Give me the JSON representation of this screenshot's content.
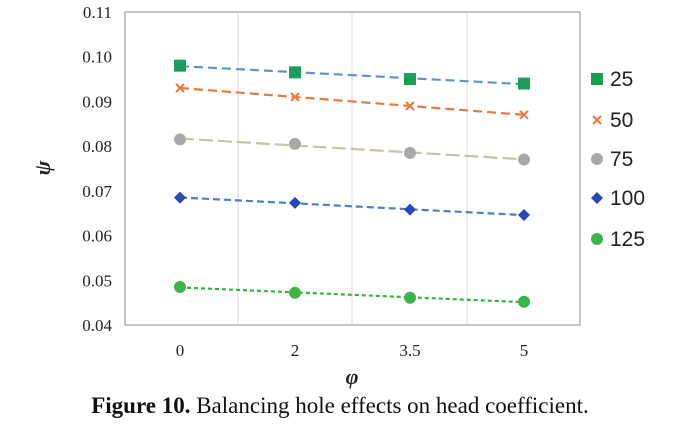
{
  "chart_data": {
    "type": "line",
    "title": "",
    "xlabel": "φ",
    "ylabel": "ψ",
    "categories": [
      "0",
      "2",
      "3.5",
      "5"
    ],
    "ylim": [
      0.04,
      0.11
    ],
    "yticks": [
      "0.04",
      "0.05",
      "0.06",
      "0.07",
      "0.08",
      "0.09",
      "0.10",
      "0.11"
    ],
    "grid": "vertical",
    "legend_position": "right",
    "series": [
      {
        "name": "25",
        "values": [
          0.098,
          0.0965,
          0.095,
          0.094
        ],
        "color": "#1a9e5a",
        "marker": "square"
      },
      {
        "name": "50",
        "values": [
          0.093,
          0.091,
          0.089,
          0.087
        ],
        "color": "#e8793a",
        "marker": "x"
      },
      {
        "name": "75",
        "values": [
          0.0815,
          0.0805,
          0.0785,
          0.077
        ],
        "color": "#a8a8a8",
        "marker": "circle"
      },
      {
        "name": "100",
        "values": [
          0.0685,
          0.0673,
          0.0658,
          0.0646
        ],
        "color": "#2a46b8",
        "marker": "diamond"
      },
      {
        "name": "125",
        "values": [
          0.0485,
          0.0472,
          0.0461,
          0.0452
        ],
        "color": "#3cb44b",
        "marker": "circle"
      }
    ],
    "trendline_colors": [
      "#5b93d6",
      "#e8793a",
      "#c8c2a6",
      "#4a7ecf",
      "#2fb83a"
    ]
  },
  "caption": {
    "label": "Figure 10.",
    "text": " Balancing hole effects on head coefficient."
  }
}
